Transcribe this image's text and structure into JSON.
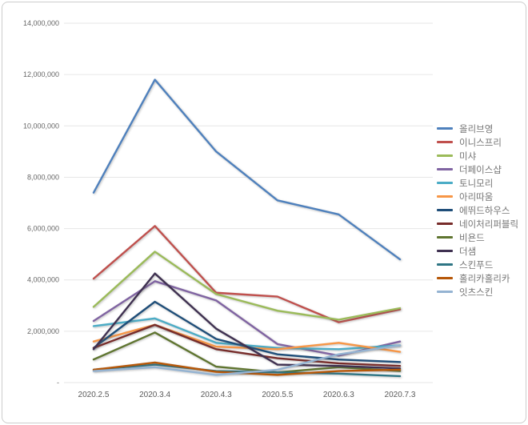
{
  "chart_data": {
    "type": "line",
    "title": "",
    "xlabel": "",
    "ylabel": "",
    "grid": "horizontal",
    "legend_position": "right",
    "x_categories": [
      "2020.2.5",
      "2020.3.4",
      "2020.4.3",
      "2020.5.5",
      "2020.6.3",
      "2020.7.3"
    ],
    "y_axis": {
      "min": 0,
      "max": 14000000,
      "step": 2000000,
      "zero_label": "-"
    },
    "y_tick_labels": [
      "-",
      "2,000,000",
      "4,000,000",
      "6,000,000",
      "8,000,000",
      "10,000,000",
      "12,000,000",
      "14,000,000"
    ],
    "series": [
      {
        "name": "올리브영",
        "color": "#4f81bd",
        "values": [
          7400000,
          11800000,
          9000000,
          7100000,
          6550000,
          4800000
        ]
      },
      {
        "name": "이니스프리",
        "color": "#c0504d",
        "values": [
          4050000,
          6100000,
          3500000,
          3350000,
          2350000,
          2850000
        ]
      },
      {
        "name": "미샤",
        "color": "#9bbb59",
        "values": [
          2950000,
          5100000,
          3450000,
          2800000,
          2450000,
          2900000
        ]
      },
      {
        "name": "더페이스샵",
        "color": "#8064a2",
        "values": [
          2400000,
          3950000,
          3200000,
          1500000,
          1050000,
          1600000
        ]
      },
      {
        "name": "토니모리",
        "color": "#4bacc6",
        "values": [
          2200000,
          2500000,
          1550000,
          1350000,
          1300000,
          1450000
        ]
      },
      {
        "name": "아리따움",
        "color": "#f79646",
        "values": [
          1600000,
          2250000,
          1400000,
          1300000,
          1550000,
          1200000
        ]
      },
      {
        "name": "에뛰드하우스",
        "color": "#1f4e79",
        "values": [
          1350000,
          3150000,
          1700000,
          1100000,
          900000,
          800000
        ]
      },
      {
        "name": "네이처리퍼블릭",
        "color": "#772c2a",
        "values": [
          1350000,
          2250000,
          1300000,
          950000,
          750000,
          650000
        ]
      },
      {
        "name": "비욘드",
        "color": "#5f7530",
        "values": [
          900000,
          1950000,
          620000,
          400000,
          600000,
          450000
        ]
      },
      {
        "name": "더샘",
        "color": "#3f3151",
        "values": [
          1300000,
          4250000,
          2100000,
          700000,
          650000,
          550000
        ]
      },
      {
        "name": "스킨푸드",
        "color": "#2e7584",
        "values": [
          500000,
          700000,
          450000,
          400000,
          350000,
          250000
        ]
      },
      {
        "name": "홀리카홀리카",
        "color": "#b65708",
        "values": [
          500000,
          780000,
          420000,
          300000,
          450000,
          500000
        ]
      },
      {
        "name": "잇츠스킨",
        "color": "#94b3d2",
        "values": [
          450000,
          600000,
          300000,
          500000,
          1100000,
          1450000
        ]
      }
    ]
  }
}
